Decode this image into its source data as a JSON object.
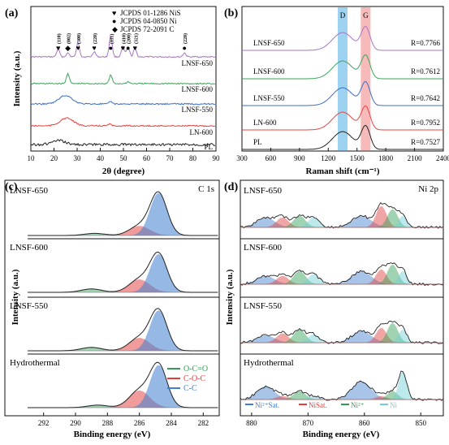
{
  "colors": {
    "pl": "#222222",
    "ln600": "#e8423f",
    "lnsf550": "#3a6cc4",
    "lnsf600": "#3aa55a",
    "lnsf650": "#a874c8",
    "cc": "#3f7fd0",
    "coc": "#e23b3b",
    "oco": "#2f9e55",
    "ni_sat": "#3f7fd0",
    "nisat": "#e23b3b",
    "ni2": "#2f9e55",
    "ni": "#6fcfd8",
    "d_band": "#7cc3ec",
    "g_band": "#f4a3a3"
  },
  "chart_data": [
    {
      "panel": "(a)",
      "type": "line",
      "xlabel": "2θ (degree)",
      "ylabel": "Intensity (a.u.)",
      "xlim": [
        10,
        90
      ],
      "xticks": [
        "10",
        "20",
        "30",
        "40",
        "50",
        "60",
        "70",
        "80",
        "90"
      ],
      "legend": [
        {
          "marker": "♥",
          "text": "JCPDS 01-1286 NiS"
        },
        {
          "marker": "●",
          "text": "JCPDS 04-0850 Ni"
        },
        {
          "marker": "◆",
          "text": "JCPDS 72-2091 C"
        }
      ],
      "peak_labels": [
        {
          "x": 21.8,
          "marker": "♥",
          "text": "(110)"
        },
        {
          "x": 26.0,
          "marker": "◆",
          "text": "(002)"
        },
        {
          "x": 30.4,
          "marker": "♥",
          "text": "(300)"
        },
        {
          "x": 37.4,
          "marker": "♥",
          "text": "(220)"
        },
        {
          "x": 44.5,
          "marker": "●",
          "text": "(111)"
        },
        {
          "x": 49.8,
          "marker": "♥",
          "text": "(410)"
        },
        {
          "x": 52.0,
          "marker": "●",
          "text": "(200)"
        },
        {
          "x": 55.0,
          "marker": "♥",
          "text": "(321)"
        },
        {
          "x": 76.4,
          "marker": "●",
          "text": "(220)"
        }
      ],
      "series": [
        {
          "name": "LNSF-650",
          "peaks": [
            [
              21.8,
              1.2
            ],
            [
              26.0,
              0.6
            ],
            [
              30.4,
              2.2
            ],
            [
              37.4,
              0.8
            ],
            [
              44.5,
              3.2
            ],
            [
              49.8,
              1.6
            ],
            [
              52.0,
              1.5
            ],
            [
              55.0,
              1.3
            ],
            [
              76.4,
              0.6
            ]
          ]
        },
        {
          "name": "LNSF-600",
          "peaks": [
            [
              26.0,
              1.6
            ],
            [
              44.5,
              1.3
            ],
            [
              52.0,
              0.3
            ]
          ]
        },
        {
          "name": "LNSF-550",
          "peaks": [
            [
              25.0,
              1.3
            ],
            [
              44.5,
              0.4
            ]
          ]
        },
        {
          "name": "LN-600",
          "peaks": [
            [
              25.5,
              1.2
            ],
            [
              44.0,
              0.3
            ]
          ]
        },
        {
          "name": "PL",
          "peaks": [
            [
              22.0,
              0.6
            ]
          ]
        }
      ]
    },
    {
      "panel": "(b)",
      "type": "line",
      "xlabel": "Raman shift (cm⁻¹)",
      "xlim": [
        300,
        2400
      ],
      "xticks": [
        "300",
        "600",
        "900",
        "1200",
        "1500",
        "1800",
        "2100",
        "2400"
      ],
      "bands": [
        {
          "label": "D",
          "center": 1350
        },
        {
          "label": "G",
          "center": 1590
        }
      ],
      "series": [
        {
          "name": "LNSF-650",
          "ratio": "R=0.7766"
        },
        {
          "name": "LNSF-600",
          "ratio": "R=0.7612"
        },
        {
          "name": "LNSF-550",
          "ratio": "R=0.7642"
        },
        {
          "name": "LN-600",
          "ratio": "R=0.7952"
        },
        {
          "name": "PL",
          "ratio": "R=0.7527"
        }
      ]
    },
    {
      "panel": "(c)",
      "type": "area",
      "title": "C 1s",
      "xlabel": "Binding energy (eV)",
      "ylabel": "Intensity (a.u.)",
      "xlim": [
        293,
        281
      ],
      "xticks": [
        "292",
        "290",
        "288",
        "286",
        "284",
        "282"
      ],
      "legend": [
        "O-C=O",
        "C-O-C",
        "C-C"
      ],
      "subplots": [
        {
          "name": "LNSF-650",
          "components": {
            "C-C": [
              284.8,
              1.0
            ],
            "C-O-C": [
              286.0,
              0.22
            ],
            "O-C=O": [
              288.8,
              0.05
            ]
          }
        },
        {
          "name": "LNSF-600",
          "components": {
            "C-C": [
              284.8,
              0.9
            ],
            "C-O-C": [
              286.0,
              0.3
            ],
            "O-C=O": [
              289.0,
              0.08
            ]
          }
        },
        {
          "name": "LNSF-550",
          "components": {
            "C-C": [
              284.8,
              0.95
            ],
            "C-O-C": [
              286.0,
              0.3
            ],
            "O-C=O": [
              289.0,
              0.08
            ]
          }
        },
        {
          "name": "Hydrothermal",
          "components": {
            "C-C": [
              284.8,
              1.0
            ],
            "C-O-C": [
              286.0,
              0.4
            ],
            "O-C=O": [
              288.6,
              0.06
            ]
          }
        }
      ]
    },
    {
      "panel": "(d)",
      "type": "area",
      "title": "Ni 2p",
      "xlabel": "Binding energy (eV)",
      "ylabel": "Intensity (a.u.)",
      "xlim": [
        882,
        846
      ],
      "xticks": [
        "880",
        "870",
        "860",
        "850"
      ],
      "legend": [
        "Ni²⁺Sat.",
        "NiSat.",
        "Ni²⁺",
        "Ni"
      ],
      "subplots": [
        {
          "name": "LNSF-650"
        },
        {
          "name": "LNSF-600"
        },
        {
          "name": "LNSF-550"
        },
        {
          "name": "Hydrothermal"
        }
      ]
    }
  ]
}
